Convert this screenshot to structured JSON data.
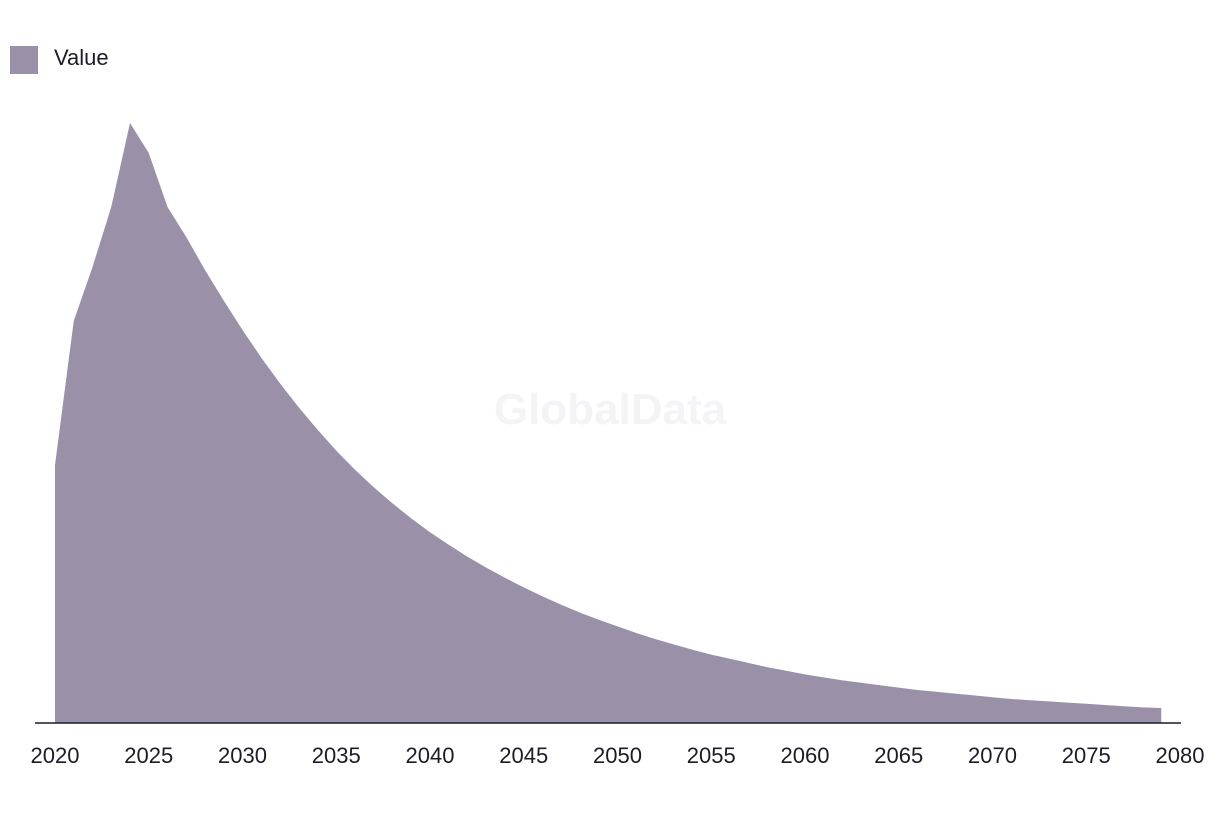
{
  "watermark": "GlobalData",
  "colors": {
    "area": "#9a91a9",
    "axis": "#1c1c28",
    "text": "#1c1c28"
  },
  "chart_data": {
    "type": "area",
    "title": "",
    "xlabel": "",
    "ylabel": "",
    "legend": {
      "position": "top-left",
      "entries": [
        "Value"
      ]
    },
    "grid": false,
    "xlim": [
      2020,
      2080
    ],
    "ylim": [
      0,
      100
    ],
    "x_ticks": [
      "2020",
      "2025",
      "2030",
      "2035",
      "2040",
      "2045",
      "2050",
      "2055",
      "2060",
      "2065",
      "2070",
      "2075",
      "2080"
    ],
    "x": [
      2020,
      2021,
      2022,
      2023,
      2024,
      2025,
      2026,
      2027,
      2028,
      2029,
      2030,
      2031,
      2032,
      2033,
      2034,
      2035,
      2036,
      2037,
      2038,
      2039,
      2040,
      2041,
      2042,
      2043,
      2044,
      2045,
      2046,
      2047,
      2048,
      2049,
      2050,
      2051,
      2052,
      2053,
      2054,
      2055,
      2056,
      2057,
      2058,
      2059,
      2060,
      2061,
      2062,
      2063,
      2064,
      2065,
      2066,
      2067,
      2068,
      2069,
      2070,
      2071,
      2072,
      2073,
      2074,
      2075,
      2076,
      2077,
      2078,
      2079
    ],
    "series": [
      {
        "name": "Value",
        "values": [
          43,
          67,
          76,
          86,
          100,
          95,
          86,
          81,
          75.5,
          70.4,
          65.5,
          60.9,
          56.6,
          52.6,
          48.9,
          45.4,
          42.2,
          39.3,
          36.6,
          34.1,
          31.8,
          29.7,
          27.7,
          25.9,
          24.2,
          22.6,
          21.1,
          19.7,
          18.4,
          17.2,
          16.1,
          15.0,
          14.0,
          13.1,
          12.2,
          11.4,
          10.7,
          10.0,
          9.3,
          8.7,
          8.1,
          7.6,
          7.1,
          6.7,
          6.3,
          5.9,
          5.5,
          5.2,
          4.9,
          4.6,
          4.3,
          4.0,
          3.8,
          3.6,
          3.4,
          3.2,
          3.0,
          2.8,
          2.6,
          2.5
        ]
      }
    ]
  }
}
